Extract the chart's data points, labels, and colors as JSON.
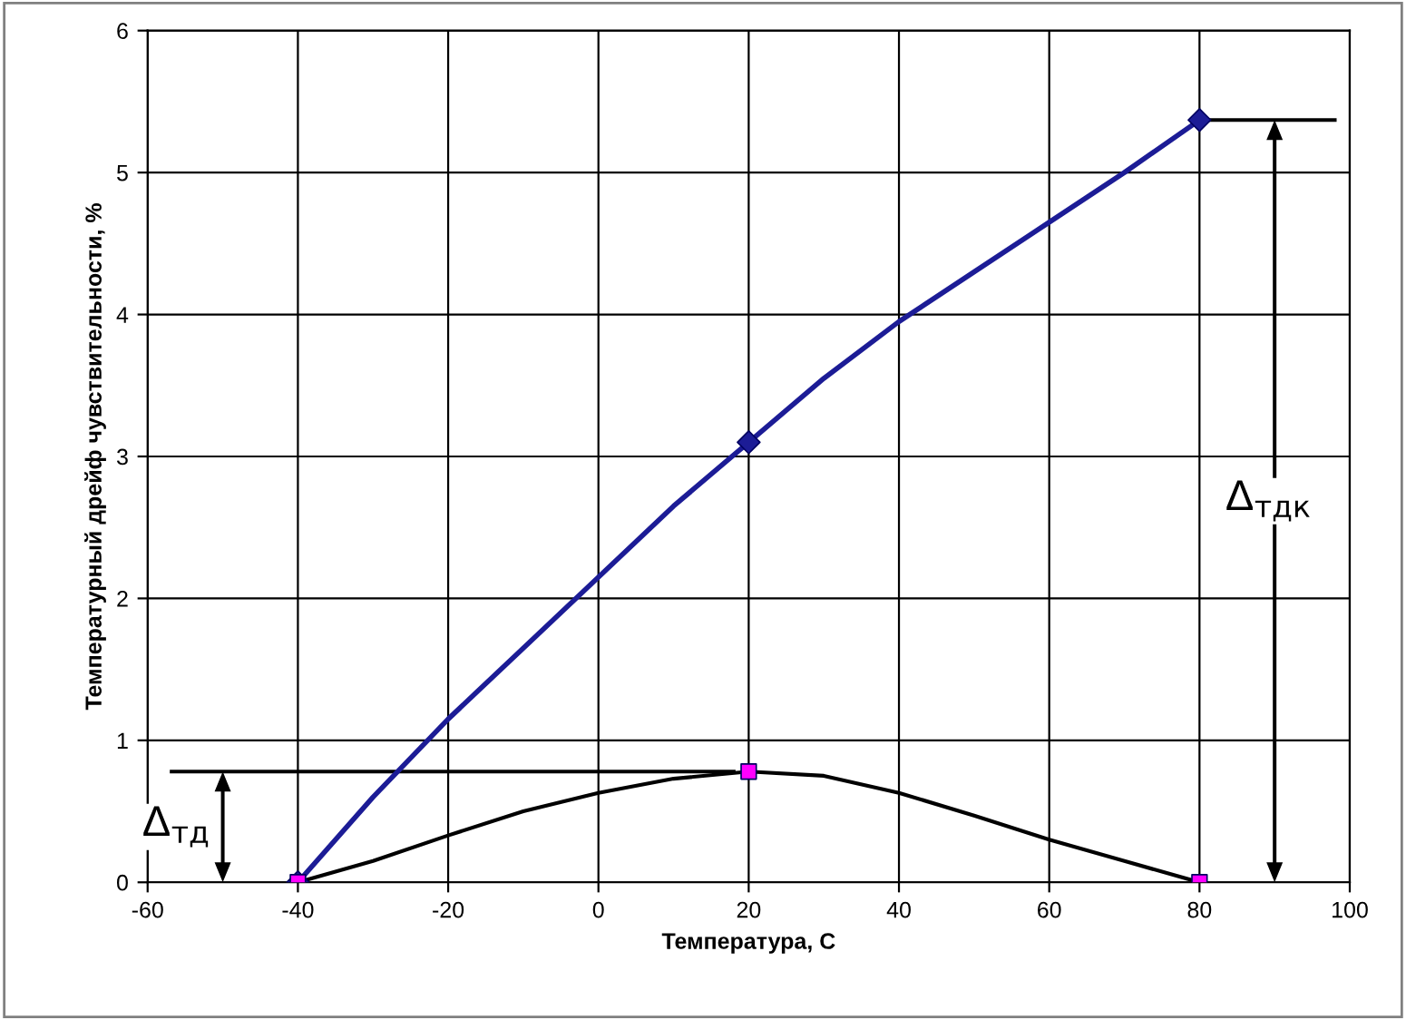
{
  "chart_data": {
    "type": "line",
    "xlabel": "Температура, С",
    "ylabel": "Температурный дрейф чувствительности, %",
    "x": [
      -40,
      -30,
      -20,
      -10,
      0,
      10,
      20,
      30,
      40,
      50,
      60,
      70,
      80
    ],
    "series": [
      {
        "color": "#1c1c96",
        "values": [
          0,
          0.6,
          1.15,
          1.65,
          2.15,
          2.65,
          3.1,
          3.55,
          3.95,
          4.3,
          4.65,
          5.0,
          5.37
        ]
      },
      {
        "color": "#000000",
        "values": [
          0,
          0.15,
          0.33,
          0.5,
          0.63,
          0.73,
          0.78,
          0.75,
          0.63,
          0.47,
          0.3,
          0.15,
          0
        ]
      },
      {
        "type": "scatter",
        "marker": "diamond",
        "color": "#1c1c96",
        "x": [
          -40,
          20,
          80
        ],
        "values": [
          0,
          3.1,
          5.37
        ]
      },
      {
        "type": "scatter",
        "marker": "square",
        "color": "#ff00ff",
        "x": [
          -40,
          20,
          80
        ],
        "values": [
          0,
          0.78,
          0
        ]
      }
    ],
    "xlim": [
      -60,
      100
    ],
    "xticks": [
      -60,
      -40,
      -20,
      0,
      20,
      40,
      60,
      80,
      100
    ],
    "ylim": [
      0,
      6
    ],
    "yticks": [
      0,
      1,
      2,
      3,
      4,
      5,
      6
    ],
    "grid": true,
    "legend": false,
    "line_style": "solid",
    "annotations": [
      "Δ$_{тд}$",
      "Δ$_{тдк}$"
    ]
  }
}
